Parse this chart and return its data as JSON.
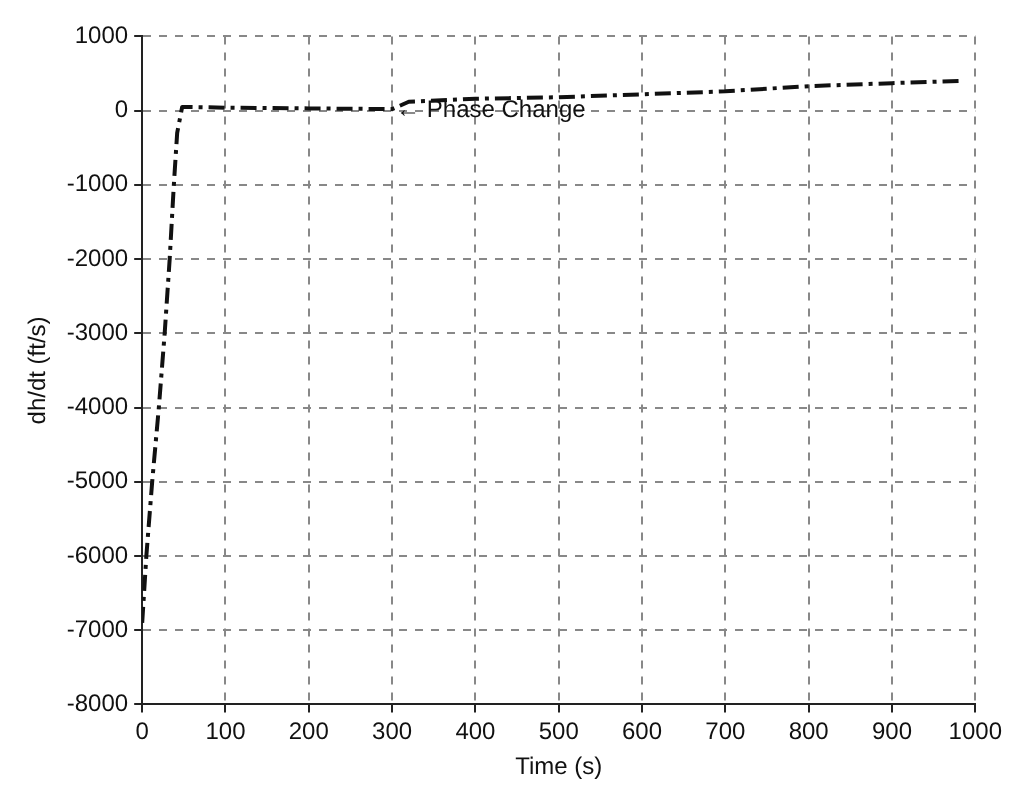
{
  "chart_data": {
    "type": "line",
    "xlabel": "Time (s)",
    "ylabel": "dh/dt (ft/s)",
    "x": [
      0,
      5,
      12,
      20,
      27,
      33,
      38,
      42,
      48,
      100,
      200,
      300,
      320,
      400,
      500,
      600,
      700,
      800,
      900,
      980
    ],
    "series": [
      {
        "color": "#111111",
        "values": [
          -6900,
          -6000,
          -5000,
          -4000,
          -3000,
          -2000,
          -1000,
          -300,
          50,
          40,
          30,
          20,
          120,
          160,
          180,
          220,
          260,
          330,
          370,
          400
        ]
      }
    ],
    "xlim": [
      0,
      1000
    ],
    "xticks": [
      0,
      100,
      200,
      300,
      400,
      500,
      600,
      700,
      800,
      900,
      1000
    ],
    "ylim": [
      -8000,
      1000
    ],
    "yticks": [
      -8000,
      -7000,
      -6000,
      -5000,
      -4000,
      -3000,
      -2000,
      -1000,
      0,
      1000
    ],
    "grid": true,
    "legend": false,
    "marker": "none",
    "line_style": "dashdot",
    "annotations": [
      {
        "text": "← Phase Change",
        "x": 300,
        "y": 0
      }
    ]
  }
}
